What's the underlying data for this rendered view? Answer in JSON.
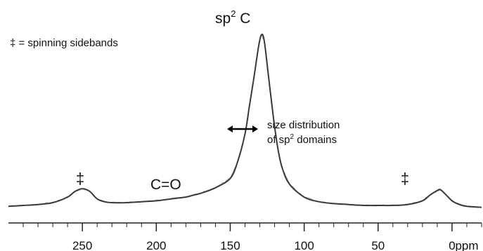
{
  "chart_data": {
    "type": "line",
    "xlabel": "ppm",
    "x_reversed": true,
    "xlim": [
      300,
      -20
    ],
    "ylim": [
      0,
      1
    ],
    "grid": false,
    "legend": "none",
    "line_color": "#3a3a3a",
    "xticks": [
      {
        "value": 250,
        "label": "250"
      },
      {
        "value": 200,
        "label": "200"
      },
      {
        "value": 150,
        "label": "150"
      },
      {
        "value": 100,
        "label": "100"
      },
      {
        "value": 50,
        "label": "50"
      },
      {
        "value": 0,
        "label": "0"
      }
    ],
    "series": [
      {
        "x": [
          300,
          290,
          280,
          270,
          260,
          255,
          250,
          245,
          240,
          235,
          230,
          220,
          210,
          200,
          190,
          180,
          175,
          170,
          160,
          150,
          145,
          140,
          137,
          134,
          131,
          129,
          127,
          124,
          121,
          118,
          115,
          110,
          100,
          90,
          80,
          70,
          60,
          50,
          40,
          30,
          20,
          15,
          10,
          8,
          5,
          0,
          -5,
          -10,
          -20
        ],
        "y": [
          0.01,
          0.015,
          0.02,
          0.03,
          0.06,
          0.09,
          0.105,
          0.09,
          0.05,
          0.035,
          0.03,
          0.03,
          0.035,
          0.04,
          0.05,
          0.06,
          0.07,
          0.08,
          0.11,
          0.16,
          0.25,
          0.4,
          0.55,
          0.7,
          0.86,
          0.93,
          0.9,
          0.7,
          0.5,
          0.33,
          0.22,
          0.13,
          0.06,
          0.035,
          0.025,
          0.02,
          0.015,
          0.015,
          0.015,
          0.02,
          0.04,
          0.07,
          0.095,
          0.1,
          0.08,
          0.04,
          0.02,
          0.01,
          0.005
        ]
      }
    ],
    "annotations": {
      "peak_main": "sp",
      "peak_main_sup": "2",
      "peak_main_suffix": " C",
      "co_label": "C=O",
      "sideband_symbol": "‡",
      "legend_text": "‡ = spinning sidebands",
      "fwhm_line1": "size distribution",
      "fwhm_line2_prefix": "of sp",
      "fwhm_line2_sup": "2",
      "fwhm_line2_suffix": " domains"
    }
  }
}
